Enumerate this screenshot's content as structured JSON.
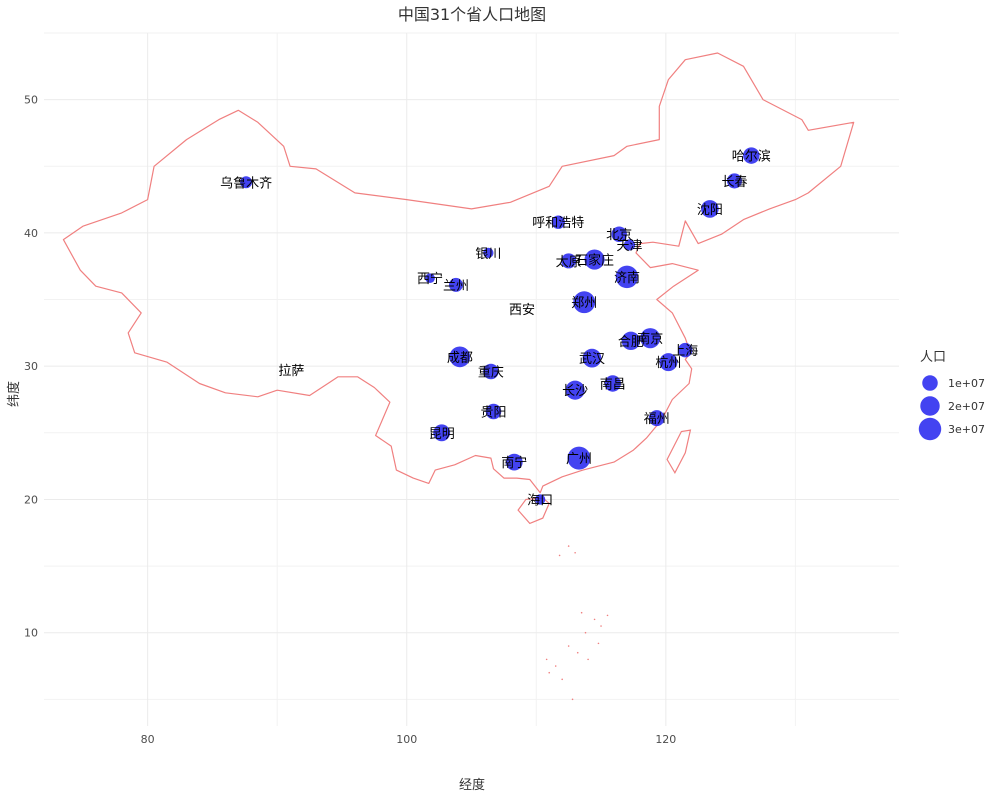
{
  "chart_data": {
    "type": "scatter",
    "title": "中国31个省人口地图",
    "xlabel": "经度",
    "ylabel": "纬度",
    "xlim": [
      72,
      138
    ],
    "ylim": [
      3,
      55
    ],
    "x_ticks": [
      "80",
      "100",
      "120"
    ],
    "x_tick_values": [
      80,
      100,
      120
    ],
    "y_ticks": [
      "10",
      "20",
      "30",
      "40",
      "50"
    ],
    "y_tick_values": [
      10,
      20,
      30,
      40,
      50
    ],
    "grid": true,
    "legend": {
      "title": "人口",
      "placement": "right",
      "entries": [
        {
          "label": "1e+07",
          "value": 10000000
        },
        {
          "label": "2e+07",
          "value": 20000000
        },
        {
          "label": "3e+07",
          "value": 30000000
        }
      ]
    },
    "point_color": "#2222ee",
    "boundary_color": "#f08080",
    "points": [
      {
        "name": "哈尔滨",
        "lon": 126.6,
        "lat": 45.8,
        "pop": 12000000
      },
      {
        "name": "长春",
        "lon": 125.3,
        "lat": 43.9,
        "pop": 9000000
      },
      {
        "name": "沈阳",
        "lon": 123.4,
        "lat": 41.8,
        "pop": 15000000
      },
      {
        "name": "乌鲁木齐",
        "lon": 87.6,
        "lat": 43.8,
        "pop": 4000000
      },
      {
        "name": "呼和浩特",
        "lon": 111.7,
        "lat": 40.8,
        "pop": 6000000
      },
      {
        "name": "北京",
        "lon": 116.4,
        "lat": 39.9,
        "pop": 10000000
      },
      {
        "name": "天津",
        "lon": 117.2,
        "lat": 39.1,
        "pop": 3000000
      },
      {
        "name": "银川",
        "lon": 106.3,
        "lat": 38.5,
        "pop": 2000000
      },
      {
        "name": "太原",
        "lon": 112.5,
        "lat": 37.9,
        "pop": 9000000
      },
      {
        "name": "石家庄",
        "lon": 114.5,
        "lat": 38.0,
        "pop": 22000000
      },
      {
        "name": "济南",
        "lon": 117.0,
        "lat": 36.7,
        "pop": 30000000
      },
      {
        "name": "西宁",
        "lon": 101.8,
        "lat": 36.6,
        "pop": 1500000
      },
      {
        "name": "兰州",
        "lon": 103.8,
        "lat": 36.1,
        "pop": 7000000
      },
      {
        "name": "郑州",
        "lon": 113.7,
        "lat": 34.8,
        "pop": 28000000
      },
      {
        "name": "合肥",
        "lon": 117.3,
        "lat": 31.9,
        "pop": 17000000
      },
      {
        "name": "南京",
        "lon": 118.8,
        "lat": 32.1,
        "pop": 22000000
      },
      {
        "name": "上海",
        "lon": 121.5,
        "lat": 31.2,
        "pop": 8000000
      },
      {
        "name": "成都",
        "lon": 104.1,
        "lat": 30.7,
        "pop": 24000000
      },
      {
        "name": "重庆",
        "lon": 106.5,
        "lat": 29.6,
        "pop": 10000000
      },
      {
        "name": "西安",
        "lon": 108.9,
        "lat": 34.3,
        "pop": 0
      },
      {
        "name": "武汉",
        "lon": 114.3,
        "lat": 30.6,
        "pop": 18000000
      },
      {
        "name": "杭州",
        "lon": 120.2,
        "lat": 30.3,
        "pop": 16000000
      },
      {
        "name": "拉萨",
        "lon": 91.1,
        "lat": 29.7,
        "pop": 0
      },
      {
        "name": "长沙",
        "lon": 113.0,
        "lat": 28.2,
        "pop": 19000000
      },
      {
        "name": "南昌",
        "lon": 115.9,
        "lat": 28.7,
        "pop": 12000000
      },
      {
        "name": "贵阳",
        "lon": 106.7,
        "lat": 26.6,
        "pop": 10000000
      },
      {
        "name": "福州",
        "lon": 119.3,
        "lat": 26.1,
        "pop": 11000000
      },
      {
        "name": "昆明",
        "lon": 102.7,
        "lat": 25.0,
        "pop": 13000000
      },
      {
        "name": "南宁",
        "lon": 108.3,
        "lat": 22.8,
        "pop": 13000000
      },
      {
        "name": "广州",
        "lon": 113.3,
        "lat": 23.1,
        "pop": 32000000
      },
      {
        "name": "海口",
        "lon": 110.3,
        "lat": 20.0,
        "pop": 2000000
      }
    ]
  }
}
